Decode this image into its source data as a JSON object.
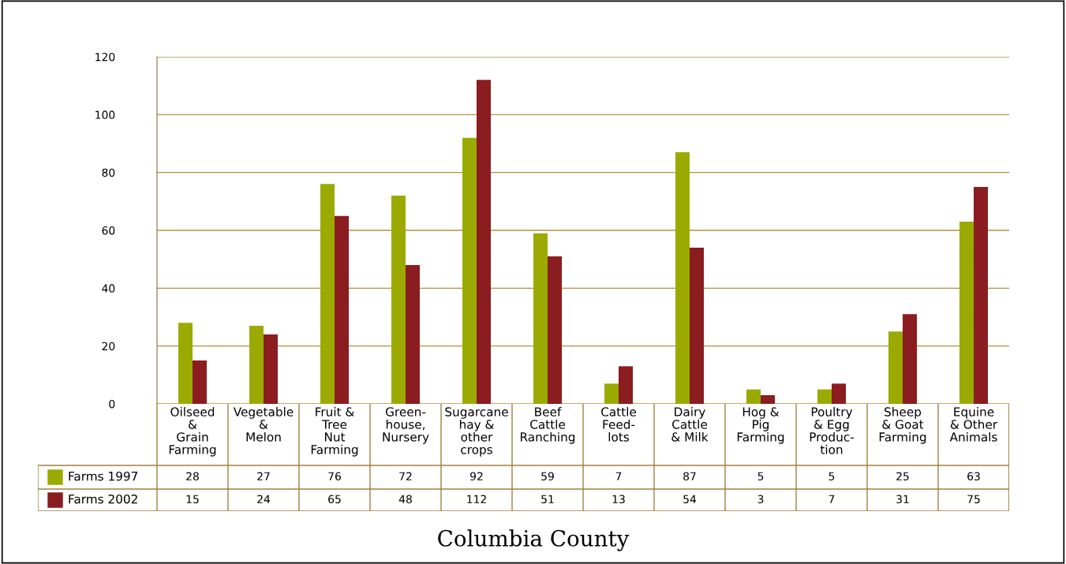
{
  "chart_data": {
    "type": "bar",
    "title": "Columbia County",
    "categories": [
      "Oilseed\n&\nGrain\nFarming",
      "Vegetable\n&\nMelon",
      "Fruit &\nTree\nNut\nFarming",
      "Green-\nhouse,\nNursery",
      "Sugarcane\nhay &\nother\ncrops",
      "Beef\nCattle\nRanching",
      "Cattle\nFeed-\nlots",
      "Dairy\nCattle\n& Milk",
      "Hog &\nPig\nFarming",
      "Poultry\n& Egg\nProduc-\ntion",
      "Sheep\n& Goat\nFarming",
      "Equine\n& Other\nAnimals"
    ],
    "series": [
      {
        "name": "Farms 1997",
        "color": "#9aaa00",
        "values": [
          28,
          27,
          76,
          72,
          92,
          59,
          7,
          87,
          5,
          5,
          25,
          63
        ]
      },
      {
        "name": "Farms 2002",
        "color": "#8b1c1f",
        "values": [
          15,
          24,
          65,
          48,
          112,
          51,
          13,
          54,
          3,
          7,
          31,
          75
        ]
      }
    ],
    "ylim": [
      0,
      120
    ],
    "yticks": [
      0,
      20,
      40,
      60,
      80,
      100,
      120
    ],
    "grid": "y",
    "legend": "left",
    "data_labels": true
  }
}
